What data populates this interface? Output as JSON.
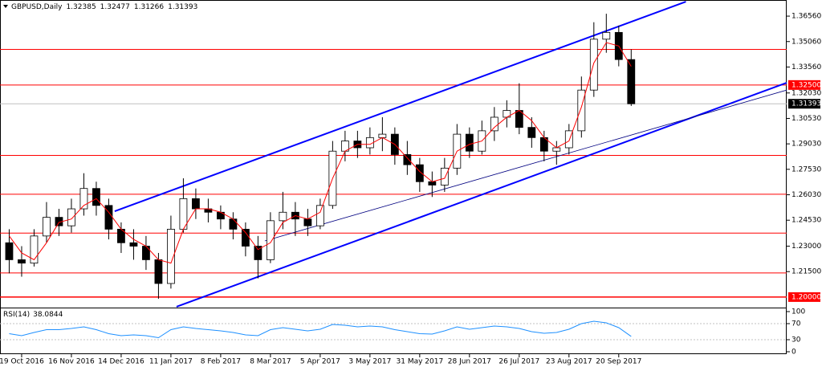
{
  "header": {
    "symbol": "GBPUSD,Daily",
    "ohlc": [
      1.32385,
      1.32477,
      1.31266,
      1.31393
    ]
  },
  "chart_data": {
    "type": "candlestick",
    "categories": [
      null,
      "19 Oct 2016",
      null,
      null,
      null,
      "16 Nov 2016",
      null,
      null,
      null,
      "14 Dec 2016",
      null,
      null,
      null,
      "11 Jan 2017",
      null,
      null,
      null,
      "8 Feb 2017",
      null,
      null,
      null,
      "8 Mar 2017",
      null,
      null,
      null,
      "5 Apr 2017",
      null,
      null,
      null,
      "3 May 2017",
      null,
      null,
      null,
      "31 May 2017",
      null,
      null,
      null,
      "28 Jun 2017",
      null,
      null,
      null,
      "26 Jul 2017",
      null,
      null,
      null,
      "23 Aug 2017",
      null,
      null,
      null,
      "20 Sep 2017",
      null
    ],
    "xlim": [
      -0.74,
      62.5
    ],
    "candles": {
      "open": [
        1.232,
        1.222,
        1.22,
        1.236,
        1.247,
        1.242,
        1.252,
        1.264,
        1.254,
        1.24,
        1.232,
        1.23,
        1.222,
        1.208,
        1.24,
        1.258,
        1.252,
        1.25,
        1.246,
        1.24,
        1.23,
        1.222,
        1.245,
        1.25,
        1.246,
        1.242,
        1.254,
        1.286,
        1.292,
        1.288,
        1.294,
        1.296,
        1.284,
        1.278,
        1.268,
        1.266,
        1.276,
        1.296,
        1.286,
        1.298,
        1.306,
        1.31,
        1.3,
        1.294,
        1.286,
        1.288,
        1.298,
        1.322,
        1.352,
        1.356,
        1.34
      ],
      "high": [
        1.24,
        1.23,
        1.24,
        1.256,
        1.252,
        1.258,
        1.273,
        1.268,
        1.258,
        1.244,
        1.24,
        1.236,
        1.226,
        1.248,
        1.27,
        1.264,
        1.258,
        1.254,
        1.25,
        1.244,
        1.236,
        1.25,
        1.262,
        1.256,
        1.252,
        1.258,
        1.292,
        1.298,
        1.298,
        1.3,
        1.306,
        1.3,
        1.292,
        1.282,
        1.274,
        1.282,
        1.302,
        1.3,
        1.304,
        1.312,
        1.316,
        1.326,
        1.306,
        1.298,
        1.292,
        1.302,
        1.33,
        1.362,
        1.367,
        1.36,
        1.346
      ],
      "low": [
        1.214,
        1.212,
        1.218,
        1.232,
        1.236,
        1.238,
        1.248,
        1.248,
        1.234,
        1.226,
        1.222,
        1.216,
        1.199,
        1.205,
        1.238,
        1.246,
        1.244,
        1.24,
        1.234,
        1.224,
        1.211,
        1.22,
        1.24,
        1.236,
        1.236,
        1.24,
        1.252,
        1.28,
        1.282,
        1.284,
        1.286,
        1.278,
        1.272,
        1.262,
        1.259,
        1.262,
        1.272,
        1.282,
        1.284,
        1.292,
        1.3,
        1.296,
        1.288,
        1.28,
        1.278,
        1.284,
        1.294,
        1.318,
        1.344,
        1.336,
        1.31266
      ],
      "close": [
        1.222,
        1.22,
        1.236,
        1.247,
        1.242,
        1.252,
        1.264,
        1.254,
        1.24,
        1.232,
        1.23,
        1.222,
        1.208,
        1.24,
        1.258,
        1.252,
        1.25,
        1.246,
        1.24,
        1.23,
        1.222,
        1.245,
        1.25,
        1.246,
        1.242,
        1.254,
        1.286,
        1.292,
        1.288,
        1.294,
        1.296,
        1.284,
        1.278,
        1.268,
        1.266,
        1.276,
        1.296,
        1.286,
        1.298,
        1.306,
        1.31,
        1.3,
        1.294,
        1.286,
        1.288,
        1.298,
        1.322,
        1.352,
        1.356,
        1.34,
        1.31393
      ]
    },
    "ma": {
      "color": "#ff0000",
      "values": [
        1.236,
        1.226,
        1.222,
        1.232,
        1.244,
        1.246,
        1.254,
        1.258,
        1.25,
        1.24,
        1.234,
        1.23,
        1.222,
        1.22,
        1.24,
        1.252,
        1.252,
        1.25,
        1.246,
        1.238,
        1.228,
        1.232,
        1.244,
        1.248,
        1.246,
        1.25,
        1.27,
        1.286,
        1.29,
        1.29,
        1.294,
        1.29,
        1.282,
        1.274,
        1.268,
        1.27,
        1.286,
        1.29,
        1.292,
        1.3,
        1.306,
        1.31,
        1.304,
        1.294,
        1.288,
        1.292,
        1.312,
        1.338,
        1.35,
        1.348,
        1.336
      ]
    },
    "ylim": [
      1.1938,
      1.3751
    ],
    "yticks": [
      {
        "value": 1.3656,
        "label": "1.36560"
      },
      {
        "value": 1.3506,
        "label": "1.35060"
      },
      {
        "value": 1.3356,
        "label": "1.33560"
      },
      {
        "value": 1.3203,
        "label": "1.32030"
      },
      {
        "value": 1.3053,
        "label": "1.30530"
      },
      {
        "value": 1.2903,
        "label": "1.29030"
      },
      {
        "value": 1.2753,
        "label": "1.27530"
      },
      {
        "value": 1.2603,
        "label": "1.26030"
      },
      {
        "value": 1.2453,
        "label": "1.24530"
      },
      {
        "value": 1.23,
        "label": "1.23000"
      },
      {
        "value": 1.215,
        "label": "1.21500"
      }
    ],
    "hlines": [
      1.346,
      {
        "value": 1.325,
        "label": "1.32500"
      },
      1.2835,
      1.2606,
      1.2377,
      1.2142,
      {
        "value": 1.2,
        "label": "1.20000"
      }
    ],
    "hline_color": "#ff0000",
    "trendlines": [
      {
        "color": "#0000ff",
        "width": 2,
        "x": [
          8.48,
          54.4
        ],
        "y": [
          1.2506,
          1.3741
        ]
      },
      {
        "color": "#0000ff",
        "width": 2,
        "x": [
          13.45,
          62.5
        ],
        "y": [
          1.1943,
          1.3263
        ]
      },
      {
        "color": "#000080",
        "width": 0.8,
        "x": [
          20.55,
          62.5
        ],
        "y": [
          1.2331,
          1.322
        ]
      }
    ],
    "rsi": {
      "name": "RSI(14)",
      "color": "#1e90ff",
      "ylim": [
        0,
        100
      ],
      "yticks": [
        100,
        70,
        30,
        0
      ],
      "levels": [
        70,
        30
      ],
      "values": [
        45,
        40,
        48,
        55,
        55,
        58,
        62,
        55,
        45,
        40,
        42,
        40,
        35,
        55,
        62,
        58,
        55,
        52,
        48,
        42,
        40,
        55,
        60,
        56,
        52,
        56,
        68,
        66,
        62,
        64,
        62,
        55,
        50,
        45,
        44,
        52,
        62,
        56,
        60,
        64,
        62,
        58,
        50,
        46,
        48,
        56,
        70,
        76,
        72,
        60,
        38.0844
      ]
    }
  }
}
